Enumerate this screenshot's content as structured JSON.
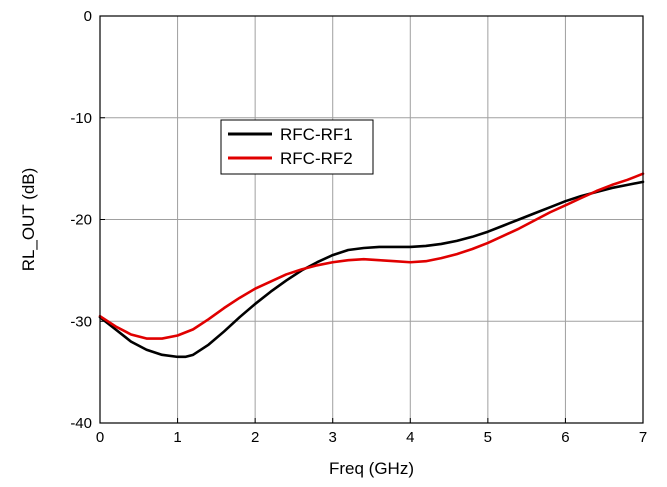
{
  "chart_data": {
    "type": "line",
    "title": "",
    "xlabel": "Freq (GHz)",
    "ylabel": "RL_OUT (dB)",
    "xlim": [
      0,
      7
    ],
    "ylim": [
      -40,
      0
    ],
    "xticks": [
      0,
      1,
      2,
      3,
      4,
      5,
      6,
      7
    ],
    "yticks": [
      0,
      -10,
      -20,
      -30,
      -40
    ],
    "grid": true,
    "legend_position": "upper-left",
    "series": [
      {
        "name": "RFC-RF1",
        "color": "#000000",
        "x": [
          0,
          0.2,
          0.4,
          0.6,
          0.8,
          1.0,
          1.1,
          1.2,
          1.4,
          1.6,
          1.8,
          2.0,
          2.2,
          2.4,
          2.6,
          2.8,
          3.0,
          3.2,
          3.4,
          3.6,
          3.8,
          4.0,
          4.2,
          4.4,
          4.6,
          4.8,
          5.0,
          5.2,
          5.4,
          5.6,
          5.8,
          6.0,
          6.2,
          6.4,
          6.6,
          6.8,
          7.0
        ],
        "y": [
          -29.6,
          -30.8,
          -32.0,
          -32.8,
          -33.3,
          -33.5,
          -33.5,
          -33.3,
          -32.3,
          -31.0,
          -29.6,
          -28.3,
          -27.1,
          -26.0,
          -25.0,
          -24.2,
          -23.5,
          -23.0,
          -22.8,
          -22.7,
          -22.7,
          -22.7,
          -22.6,
          -22.4,
          -22.1,
          -21.7,
          -21.2,
          -20.6,
          -20.0,
          -19.4,
          -18.8,
          -18.2,
          -17.7,
          -17.3,
          -16.9,
          -16.6,
          -16.3
        ]
      },
      {
        "name": "RFC-RF2",
        "color": "#e00000",
        "x": [
          0,
          0.2,
          0.4,
          0.6,
          0.8,
          1.0,
          1.2,
          1.4,
          1.6,
          1.8,
          2.0,
          2.2,
          2.4,
          2.6,
          2.8,
          3.0,
          3.2,
          3.4,
          3.6,
          3.8,
          4.0,
          4.2,
          4.4,
          4.6,
          4.8,
          5.0,
          5.2,
          5.4,
          5.6,
          5.8,
          6.0,
          6.2,
          6.4,
          6.6,
          6.8,
          7.0
        ],
        "y": [
          -29.5,
          -30.5,
          -31.3,
          -31.7,
          -31.7,
          -31.4,
          -30.8,
          -29.8,
          -28.7,
          -27.7,
          -26.8,
          -26.1,
          -25.4,
          -24.9,
          -24.5,
          -24.2,
          -24.0,
          -23.9,
          -24.0,
          -24.1,
          -24.2,
          -24.1,
          -23.8,
          -23.4,
          -22.9,
          -22.3,
          -21.6,
          -20.9,
          -20.1,
          -19.3,
          -18.6,
          -17.9,
          -17.2,
          -16.6,
          -16.1,
          -15.5
        ]
      }
    ]
  }
}
